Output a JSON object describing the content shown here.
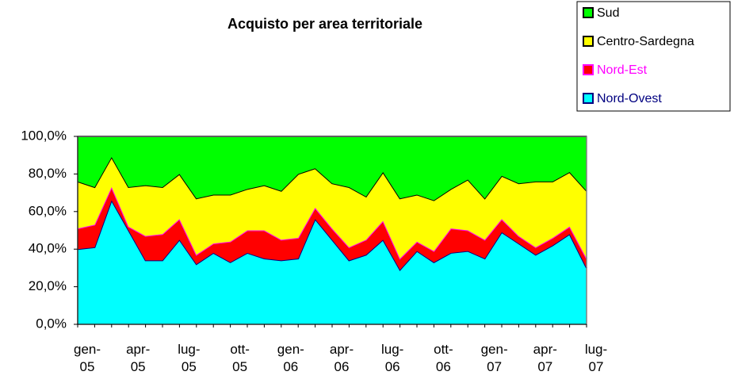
{
  "chart_data": {
    "type": "stacked_area",
    "title": "Acquisto per area territoriale",
    "categories": [
      "gen-05",
      null,
      null,
      "apr-05",
      null,
      null,
      "lug-05",
      null,
      null,
      "ott-05",
      null,
      null,
      "gen-06",
      null,
      null,
      "apr-06",
      null,
      null,
      "lug-06",
      null,
      null,
      "ott-06",
      null,
      null,
      "gen-07",
      null,
      null,
      "apr-07",
      null,
      null,
      "lug-07"
    ],
    "series": [
      {
        "name": "Nord-Ovest",
        "color": "#00ffff",
        "border": "#000080",
        "values": [
          40,
          41,
          66,
          50,
          34,
          34,
          45,
          32,
          38,
          33,
          38,
          35,
          34,
          35,
          56,
          45,
          34,
          37,
          45,
          29,
          39,
          33,
          38,
          39,
          35,
          49,
          43,
          37,
          42,
          48,
          30
        ]
      },
      {
        "name": "Nord-Est",
        "color": "#ff0000",
        "border": "#ff00ff",
        "values": [
          11,
          12,
          7,
          2,
          13,
          14,
          11,
          5,
          5,
          11,
          12,
          15,
          11,
          11,
          6,
          6,
          7,
          8,
          10,
          6,
          5,
          6,
          13,
          11,
          10,
          7,
          4,
          4,
          4,
          4,
          5
        ]
      },
      {
        "name": "Centro-Sardegna",
        "color": "#ffff00",
        "border": "#000000",
        "values": [
          25,
          20,
          16,
          21,
          27,
          25,
          24,
          30,
          26,
          25,
          22,
          24,
          26,
          34,
          21,
          24,
          32,
          23,
          26,
          32,
          25,
          27,
          21,
          27,
          22,
          23,
          28,
          35,
          30,
          29,
          36
        ]
      },
      {
        "name": "Sud",
        "color": "#00ff00",
        "border": "#000000",
        "values": [
          24,
          27,
          11,
          27,
          26,
          27,
          20,
          33,
          31,
          31,
          28,
          26,
          29,
          20,
          17,
          25,
          27,
          32,
          19,
          33,
          31,
          34,
          28,
          23,
          33,
          21,
          25,
          24,
          24,
          19,
          29
        ]
      }
    ],
    "ylim": [
      0,
      100
    ],
    "yticks": [
      {
        "value": 0,
        "label": "0,0%"
      },
      {
        "value": 20,
        "label": "20,0%"
      },
      {
        "value": 40,
        "label": "40,0%"
      },
      {
        "value": 60,
        "label": "60,0%"
      },
      {
        "value": 80,
        "label": "80,0%"
      },
      {
        "value": 100,
        "label": "100,0%"
      }
    ],
    "legend": "top-right"
  }
}
